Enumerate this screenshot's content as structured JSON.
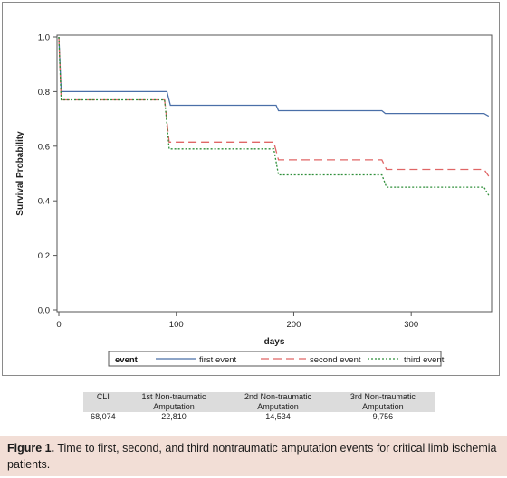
{
  "chart_data": {
    "type": "line",
    "ylabel": "Survival Probability",
    "xlabel": "days",
    "xlim": [
      0,
      370
    ],
    "ylim": [
      0,
      1.0
    ],
    "x_ticks": [
      0,
      100,
      200,
      300
    ],
    "y_ticks": [
      "0.0",
      "0.2",
      "0.4",
      "0.6",
      "0.8",
      "1.0"
    ],
    "legend_title": "event",
    "legend_position": "bottom",
    "series": [
      {
        "name": "first event",
        "color": "#4a6fa8",
        "dash": "solid",
        "points": [
          [
            0,
            1.0
          ],
          [
            2,
            0.8
          ],
          [
            92,
            0.8
          ],
          [
            95,
            0.75
          ],
          [
            185,
            0.75
          ],
          [
            187,
            0.73
          ],
          [
            275,
            0.73
          ],
          [
            278,
            0.72
          ],
          [
            362,
            0.72
          ],
          [
            366,
            0.71
          ]
        ]
      },
      {
        "name": "second event",
        "color": "#e06666",
        "dash": "long",
        "points": [
          [
            0,
            1.0
          ],
          [
            2,
            0.77
          ],
          [
            90,
            0.77
          ],
          [
            94,
            0.615
          ],
          [
            183,
            0.615
          ],
          [
            187,
            0.55
          ],
          [
            275,
            0.55
          ],
          [
            279,
            0.515
          ],
          [
            362,
            0.515
          ],
          [
            366,
            0.49
          ]
        ]
      },
      {
        "name": "third event",
        "color": "#2f8f3a",
        "dash": "dot",
        "points": [
          [
            0,
            1.0
          ],
          [
            2,
            0.77
          ],
          [
            90,
            0.77
          ],
          [
            94,
            0.59
          ],
          [
            183,
            0.59
          ],
          [
            187,
            0.495
          ],
          [
            275,
            0.495
          ],
          [
            279,
            0.45
          ],
          [
            362,
            0.45
          ],
          [
            366,
            0.42
          ]
        ]
      }
    ]
  },
  "table": {
    "headers": [
      [
        "CLI"
      ],
      [
        "1st Non-traumatic",
        "Amputation"
      ],
      [
        "2nd Non-traumatic",
        "Amputation"
      ],
      [
        "3rd Non-traumatic",
        "Amputation"
      ]
    ],
    "values": [
      "68,074",
      "22,810",
      "14,534",
      "9,756"
    ]
  },
  "caption": {
    "label": "Figure 1.",
    "text": "Time to first, second, and third nontraumatic amputation events for critical limb ischemia patients."
  }
}
